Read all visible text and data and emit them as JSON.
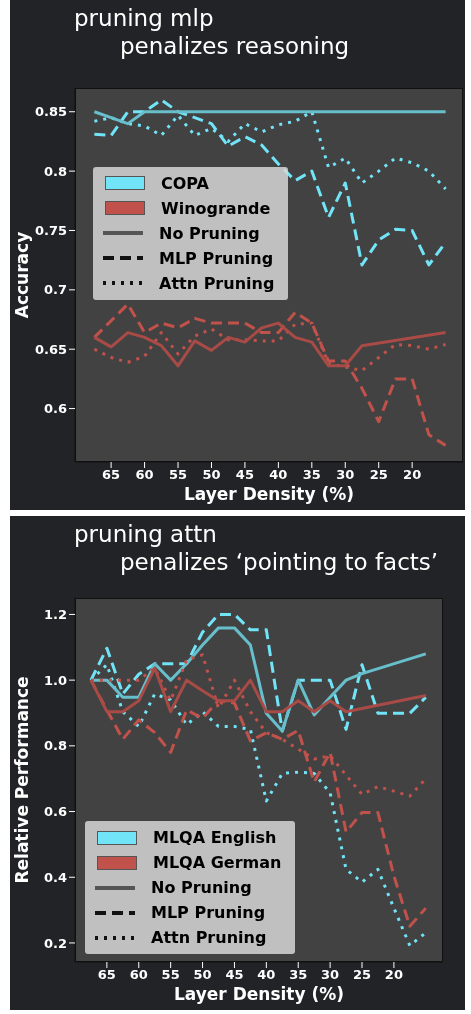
{
  "chart_data": [
    {
      "type": "line",
      "title": "pruning mlp",
      "subtitle": "penalizes reasoning",
      "xlabel": "Layer Density (%)",
      "ylabel": "Accuracy",
      "xlim": [
        70.4,
        12.4
      ],
      "xticks": [
        65,
        60,
        55,
        50,
        45,
        40,
        35,
        30,
        25,
        20
      ],
      "ylim": [
        0.555,
        0.87
      ],
      "yticks": [
        0.6,
        0.65,
        0.7,
        0.75,
        0.8,
        0.85
      ],
      "legend": "center left",
      "series": [
        {
          "name": "COPA",
          "color": "#72e4f7",
          "line_style": "dashed",
          "x": [
            67.5,
            65,
            62.5,
            60,
            57.5,
            55,
            52.5,
            50,
            47.5,
            45,
            42.5,
            40,
            37.5,
            35,
            32.5,
            30,
            27.5,
            25,
            22.5,
            20,
            17.5,
            15
          ],
          "values": [
            0.831,
            0.83,
            0.85,
            0.85,
            0.86,
            0.85,
            0.845,
            0.84,
            0.821,
            0.829,
            0.822,
            0.806,
            0.792,
            0.8,
            0.761,
            0.79,
            0.721,
            0.742,
            0.751,
            0.75,
            0.721,
            0.74
          ]
        },
        {
          "color": "#72e4f7",
          "line_style": "dotted",
          "x": [
            67.5,
            65,
            62.5,
            60,
            57.5,
            55,
            52.5,
            50,
            47.5,
            45,
            42.5,
            40,
            37.5,
            35,
            32.5,
            30,
            27.5,
            25,
            22.5,
            20,
            17.5,
            15
          ],
          "values": [
            0.842,
            0.845,
            0.84,
            0.838,
            0.83,
            0.847,
            0.83,
            0.836,
            0.825,
            0.84,
            0.833,
            0.839,
            0.842,
            0.85,
            0.803,
            0.811,
            0.79,
            0.8,
            0.811,
            0.807,
            0.8,
            0.785
          ]
        },
        {
          "color": "#67bfcc",
          "line_style": "solid",
          "x": [
            67.5,
            65,
            62.5,
            60,
            57.5,
            55,
            52.5,
            50,
            47.5,
            45,
            42.5,
            40,
            37.5,
            35,
            32.5,
            30,
            27.5,
            15
          ],
          "values": [
            0.85,
            0.845,
            0.84,
            0.85,
            0.85,
            0.85,
            0.85,
            0.85,
            0.85,
            0.85,
            0.85,
            0.85,
            0.85,
            0.85,
            0.85,
            0.85,
            0.85,
            0.85
          ]
        },
        {
          "name": "Winogrande",
          "color": "#c1524b",
          "line_style": "dashed",
          "x": [
            67.5,
            65,
            62.5,
            60,
            57.5,
            55,
            52.5,
            50,
            47.5,
            45,
            42.5,
            40,
            37.5,
            35,
            32.5,
            30,
            27.5,
            25,
            22.5,
            20,
            17.5,
            15
          ],
          "values": [
            0.66,
            0.674,
            0.688,
            0.664,
            0.672,
            0.668,
            0.676,
            0.672,
            0.672,
            0.672,
            0.664,
            0.664,
            0.681,
            0.672,
            0.64,
            0.64,
            0.617,
            0.589,
            0.625,
            0.625,
            0.578,
            0.569
          ]
        },
        {
          "color": "#c1524b",
          "line_style": "dotted",
          "x": [
            67.5,
            65,
            62.5,
            60,
            57.5,
            55,
            52.5,
            50,
            47.5,
            45,
            42.5,
            40,
            37.5,
            35,
            32.5,
            30,
            27.5,
            25,
            22.5,
            20,
            17.5,
            15
          ],
          "values": [
            0.65,
            0.643,
            0.639,
            0.644,
            0.664,
            0.646,
            0.661,
            0.667,
            0.658,
            0.658,
            0.657,
            0.657,
            0.671,
            0.672,
            0.638,
            0.635,
            0.632,
            0.643,
            0.654,
            0.653,
            0.65,
            0.654
          ]
        },
        {
          "color": "#a84b46",
          "line_style": "solid",
          "x": [
            67.5,
            65,
            62.5,
            60,
            57.5,
            55,
            52.5,
            50,
            47.5,
            45,
            42.5,
            40,
            37.5,
            35,
            32.5,
            30,
            27.5,
            15
          ],
          "values": [
            0.66,
            0.652,
            0.664,
            0.66,
            0.653,
            0.636,
            0.657,
            0.649,
            0.66,
            0.656,
            0.668,
            0.672,
            0.66,
            0.656,
            0.636,
            0.636,
            0.653,
            0.664
          ]
        },
        {
          "name": "No Pruning",
          "color": "#555555",
          "line_style": "solid"
        },
        {
          "name": "MLP Pruning",
          "color": "#111111",
          "line_style": "dashed"
        },
        {
          "name": "Attn Pruning",
          "color": "#111111",
          "line_style": "dotted"
        }
      ]
    },
    {
      "type": "line",
      "title": "pruning attn",
      "subtitle": "penalizes ‘pointing to facts’",
      "xlabel": "Layer Density (%)",
      "ylabel": "Relative Performance",
      "xlim": [
        70.0,
        12.3
      ],
      "xticks": [
        65,
        60,
        55,
        50,
        45,
        40,
        35,
        30,
        25,
        20
      ],
      "ylim": [
        0.142,
        1.25
      ],
      "yticks": [
        0.2,
        0.4,
        0.6,
        0.8,
        {
          "value": 1,
          "label": "1.0"
        },
        1.2
      ],
      "legend": "bottom left",
      "series": [
        {
          "name": "MLQA English",
          "color": "#72e4f7",
          "line_style": "dashed",
          "x": [
            67.5,
            65,
            62.5,
            60,
            57.5,
            55,
            52.5,
            50,
            47.5,
            45,
            42.5,
            40,
            37.5,
            35,
            32.5,
            30,
            27.5,
            25,
            22.5,
            20,
            17.5,
            15
          ],
          "values": [
            1.0,
            1.097,
            0.958,
            1.018,
            1.05,
            1.05,
            1.05,
            1.146,
            1.2,
            1.2,
            1.153,
            1.153,
            0.845,
            1.0,
            1.0,
            1.0,
            0.85,
            1.047,
            0.899,
            0.899,
            0.899,
            0.948
          ]
        },
        {
          "color": "#72e4f7",
          "line_style": "dotted",
          "x": [
            67.5,
            65,
            62.5,
            60,
            57.5,
            55,
            52.5,
            50,
            47.5,
            45,
            42.5,
            40,
            37.5,
            35,
            32.5,
            30,
            27.5,
            25,
            22.5,
            20,
            17.5,
            15
          ],
          "values": [
            1.0,
            1.047,
            0.904,
            0.859,
            0.958,
            0.94,
            0.864,
            0.904,
            0.859,
            0.859,
            0.85,
            0.632,
            0.716,
            0.72,
            0.716,
            0.657,
            0.424,
            0.385,
            0.424,
            0.306,
            0.192,
            0.231
          ]
        },
        {
          "color": "#67bfcc",
          "line_style": "solid",
          "x": [
            67.5,
            65,
            62.5,
            60,
            57.5,
            55,
            52.5,
            50,
            47.5,
            45,
            42.5,
            40,
            37.5,
            35,
            32.5,
            30,
            27.5,
            25,
            15
          ],
          "values": [
            1.0,
            1.0,
            0.948,
            0.948,
            1.05,
            1.0,
            1.05,
            1.107,
            1.159,
            1.159,
            1.107,
            0.899,
            0.845,
            1.0,
            0.894,
            0.948,
            1.0,
            1.02,
            1.08
          ]
        },
        {
          "name": "MLQA German",
          "color": "#c1524b",
          "line_style": "dashed",
          "x": [
            67.5,
            65,
            62.5,
            60,
            57.5,
            55,
            52.5,
            50,
            47.5,
            45,
            42.5,
            40,
            37.5,
            35,
            32.5,
            30,
            27.5,
            25,
            22.5,
            20,
            17.5,
            15
          ],
          "values": [
            1.0,
            0.909,
            0.82,
            0.879,
            0.84,
            0.78,
            0.909,
            0.884,
            0.938,
            0.93,
            0.815,
            0.84,
            0.82,
            0.847,
            0.69,
            0.78,
            0.538,
            0.597,
            0.597,
            0.404,
            0.251,
            0.306
          ]
        },
        {
          "color": "#c1524b",
          "line_style": "dotted",
          "x": [
            67.5,
            65,
            62.5,
            60,
            57.5,
            55,
            52.5,
            50,
            47.5,
            45,
            42.5,
            40,
            37.5,
            35,
            32.5,
            30,
            27.5,
            25,
            22.5,
            20,
            17.5,
            15
          ],
          "values": [
            1.0,
            1.0,
            1.0,
            1.0,
            1.037,
            0.938,
            1.062,
            1.077,
            0.914,
            1.0,
            0.904,
            0.84,
            0.82,
            0.79,
            0.76,
            0.77,
            0.711,
            0.652,
            0.676,
            0.662,
            0.647,
            0.7
          ]
        },
        {
          "color": "#a84b46",
          "line_style": "solid",
          "x": [
            67.5,
            65,
            62.5,
            60,
            57.5,
            55,
            52.5,
            50,
            47.5,
            45,
            42.5,
            40,
            37.5,
            35,
            32.5,
            30,
            27.5,
            15
          ],
          "values": [
            1.0,
            0.904,
            0.904,
            0.937,
            1.037,
            0.904,
            1.0,
            0.968,
            0.937,
            0.937,
            1.0,
            0.904,
            0.904,
            0.937,
            0.904,
            0.937,
            0.904,
            0.953
          ]
        },
        {
          "name": "No Pruning",
          "color": "#555555",
          "line_style": "solid"
        },
        {
          "name": "MLP Pruning",
          "color": "#111111",
          "line_style": "dashed"
        },
        {
          "name": "Attn Pruning",
          "color": "#111111",
          "line_style": "dotted"
        }
      ]
    }
  ]
}
